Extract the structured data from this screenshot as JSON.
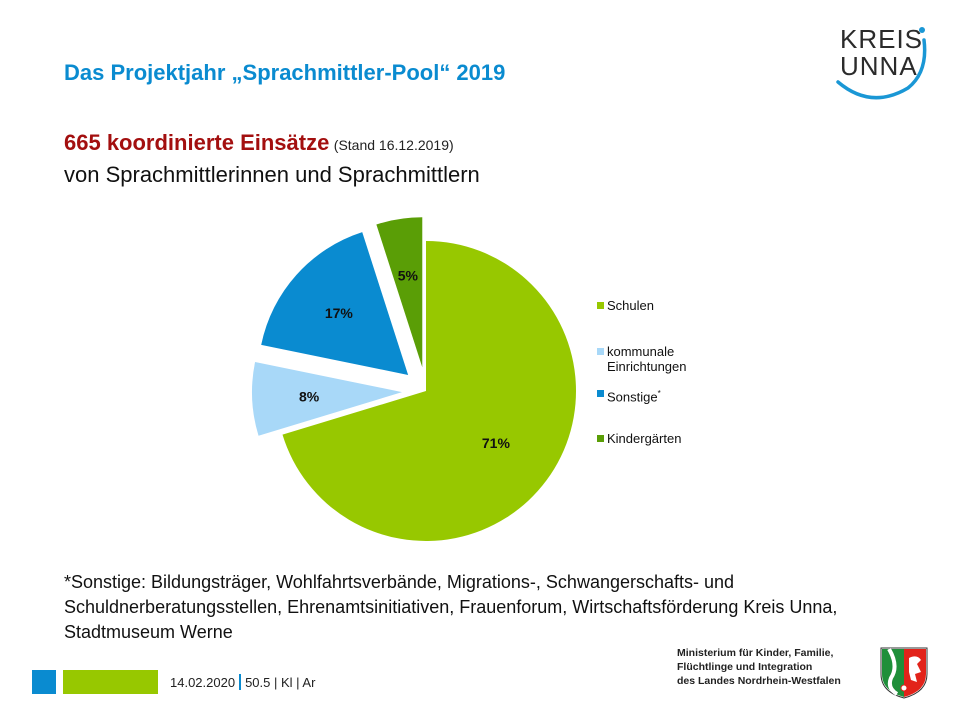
{
  "header": {
    "title": "Das Projektjahr „Sprachmittler-Pool“ 2019",
    "headline_strong": "665 koordinierte Einsätze",
    "headline_note": "(Stand 16.12.2019)",
    "subline": "von Sprachmittlerinnen und Sprachmittlern"
  },
  "logo": {
    "line1": "KREIS",
    "line2": "UNNA"
  },
  "chart_data": {
    "type": "pie",
    "title": "665 koordinierte Einsätze",
    "start_angle": "12 o'clock, clockwise",
    "slices": [
      {
        "name": "Schulen",
        "value": 71,
        "label": "71%",
        "color": "#97c800",
        "exploded": false
      },
      {
        "name": "kommunale Einrichtungen",
        "value": 8,
        "label": "8%",
        "color": "#a8d8f8",
        "exploded": true
      },
      {
        "name": "Sonstige*",
        "value": 17,
        "label": "17%",
        "color": "#0a8bd0",
        "exploded": true
      },
      {
        "name": "Kindergärten",
        "value": 5,
        "label": "5%",
        "color": "#5a9e06",
        "exploded": true
      }
    ],
    "legend_position": "right",
    "legend": [
      {
        "label": "Schulen",
        "color": "#97c800"
      },
      {
        "label": "kommunale Einrichtungen",
        "label_lines": [
          "kommunale",
          "Einrichtungen"
        ],
        "color": "#a8d8f8"
      },
      {
        "label": "Sonstige",
        "sup": "*",
        "color": "#0a8bd0"
      },
      {
        "label": "Kindergärten",
        "color": "#5a9e06"
      }
    ]
  },
  "footnote": "*Sonstige: Bildungsträger, Wohlfahrtsverbände,  Migrations-, Schwangerschafts- und Schuldnerberatungsstellen, Ehrenamtsinitiativen, Frauenforum, Wirtschaftsförderung Kreis Unna, Stadtmuseum Werne",
  "footer": {
    "date": "14.02.2020",
    "ref": "50.5 | Kl | Ar",
    "ministry_lines": [
      "Ministerium für Kinder, Familie,",
      "Flüchtlinge und Integration",
      "des Landes Nordrhein-Westfalen"
    ]
  },
  "colors": {
    "brand_blue": "#0a8bd0",
    "brand_green": "#97c800",
    "headline_red": "#a30f0f"
  }
}
